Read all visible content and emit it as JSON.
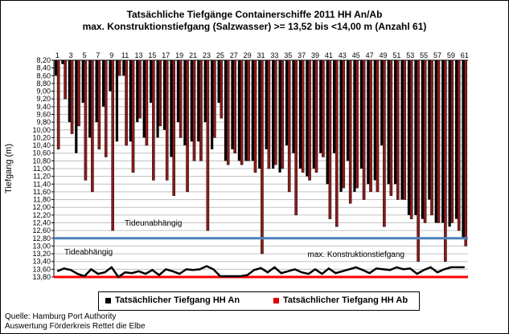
{
  "title": "Tatsächliche Tiefgänge Containerschiffe  2011 HH An/Ab",
  "subtitle": "max. Konstruktionstiefgang  (Salzwasser) >= 13,52 bis <14,00 m (Anzahl 61)",
  "source": "Quelle: Hamburg Port Authority",
  "credit": "Auswertung Förderkreis Rettet die Elbe",
  "colors": {
    "an": "#000000",
    "ab_fill": "#8b1a1a",
    "tideunabhaengig_line": "#4f81bd",
    "tideabhaengig_line": "#ff0000",
    "grid": "#c0c0c0"
  },
  "chart_data": {
    "type": "bar",
    "ylabel": "Tiefgang (m)",
    "y_axis_inverted": true,
    "ylim": [
      8.2,
      13.8
    ],
    "ytick_step": 0.2,
    "ytick_labels": [
      "8,20",
      "8,40",
      "8,60",
      "8,80",
      "9,00",
      "9,20",
      "9,40",
      "9,60",
      "9,80",
      "10,00",
      "10,20",
      "10,40",
      "10,60",
      "10,80",
      "11,00",
      "11,20",
      "11,40",
      "11,60",
      "11,80",
      "12,00",
      "12,20",
      "12,40",
      "12,60",
      "12,80",
      "13,00",
      "13,20",
      "13,40",
      "13,60",
      "13,80"
    ],
    "grid": true,
    "legend_placement": "bottom",
    "categories": [
      1,
      2,
      3,
      4,
      5,
      6,
      7,
      8,
      9,
      10,
      11,
      12,
      13,
      14,
      15,
      16,
      17,
      18,
      19,
      20,
      21,
      22,
      23,
      24,
      25,
      26,
      27,
      28,
      29,
      30,
      31,
      32,
      33,
      34,
      35,
      36,
      37,
      38,
      39,
      40,
      41,
      42,
      43,
      44,
      45,
      46,
      47,
      48,
      49,
      50,
      51,
      52,
      53,
      54,
      55,
      56,
      57,
      58,
      59,
      60,
      61
    ],
    "xtick_labels": [
      "1",
      "3",
      "5",
      "7",
      "9",
      "11",
      "13",
      "15",
      "17",
      "19",
      "21",
      "23",
      "25",
      "27",
      "29",
      "31",
      "33",
      "35",
      "37",
      "39",
      "41",
      "43",
      "45",
      "47",
      "49",
      "51",
      "53",
      "55",
      "57",
      "59",
      "61"
    ],
    "series": [
      {
        "name": "Tatsächlicher Tiefgang HH An",
        "values": [
          8.6,
          8.3,
          9.8,
          10.6,
          9.3,
          10.2,
          9.8,
          9.4,
          9.0,
          10.3,
          8.6,
          10.3,
          9.8,
          10.2,
          9.3,
          10.2,
          10.0,
          10.7,
          9.8,
          10.4,
          10.3,
          10.3,
          9.8,
          10.5,
          9.3,
          10.8,
          10.5,
          10.8,
          10.8,
          10.8,
          11.0,
          10.5,
          11.0,
          11.1,
          10.4,
          10.6,
          11.0,
          11.2,
          11.0,
          10.6,
          11.4,
          10.6,
          11.6,
          10.8,
          11.6,
          11.0,
          11.4,
          11.3,
          10.4,
          11.4,
          11.4,
          11.8,
          12.2,
          12.2,
          12.3,
          11.8,
          12.4,
          12.4,
          12.5,
          12.3,
          12.8
        ]
      },
      {
        "name": "Tatsächlicher Tiefgang HH Ab",
        "values": [
          10.5,
          9.2,
          10.1,
          9.9,
          11.3,
          11.6,
          10.5,
          10.7,
          12.6,
          8.6,
          10.4,
          11.1,
          9.7,
          10.4,
          11.3,
          9.9,
          11.3,
          11.7,
          10.2,
          11.6,
          10.8,
          10.8,
          12.6,
          10.2,
          9.7,
          10.9,
          10.6,
          10.9,
          10.8,
          11.1,
          13.2,
          11.0,
          10.9,
          11.0,
          11.6,
          12.2,
          11.1,
          11.3,
          11.1,
          10.7,
          12.3,
          12.5,
          11.5,
          11.9,
          11.5,
          11.8,
          11.6,
          11.6,
          12.5,
          11.7,
          11.8,
          11.8,
          12.3,
          13.4,
          12.4,
          12.2,
          12.4,
          13.4,
          12.4,
          12.6,
          13.0
        ]
      },
      {
        "name": "max. Konstruktionstiefgang",
        "type": "line",
        "values": [
          13.65,
          13.58,
          13.62,
          13.72,
          13.78,
          13.6,
          13.72,
          13.68,
          13.55,
          13.8,
          13.68,
          13.7,
          13.65,
          13.72,
          13.62,
          13.75,
          13.6,
          13.65,
          13.72,
          13.6,
          13.62,
          13.6,
          13.52,
          13.6,
          13.78,
          13.78,
          13.78,
          13.78,
          13.75,
          13.62,
          13.57,
          13.68,
          13.55,
          13.7,
          13.65,
          13.6,
          13.68,
          13.72,
          13.6,
          13.72,
          13.58,
          13.7,
          13.65,
          13.6,
          13.55,
          13.62,
          13.7,
          13.58,
          13.6,
          13.62,
          13.55,
          13.6,
          13.58,
          13.72,
          13.62,
          13.55,
          13.68,
          13.6,
          13.55,
          13.55,
          13.55
        ]
      }
    ],
    "reference_lines": [
      {
        "label": "Tideunabhängig",
        "y": 12.8
      },
      {
        "label": "Tideabhängig",
        "y": 13.8
      }
    ],
    "annotations": [
      {
        "text": "max. Konstruktionstiefgang",
        "x": 45
      }
    ]
  }
}
